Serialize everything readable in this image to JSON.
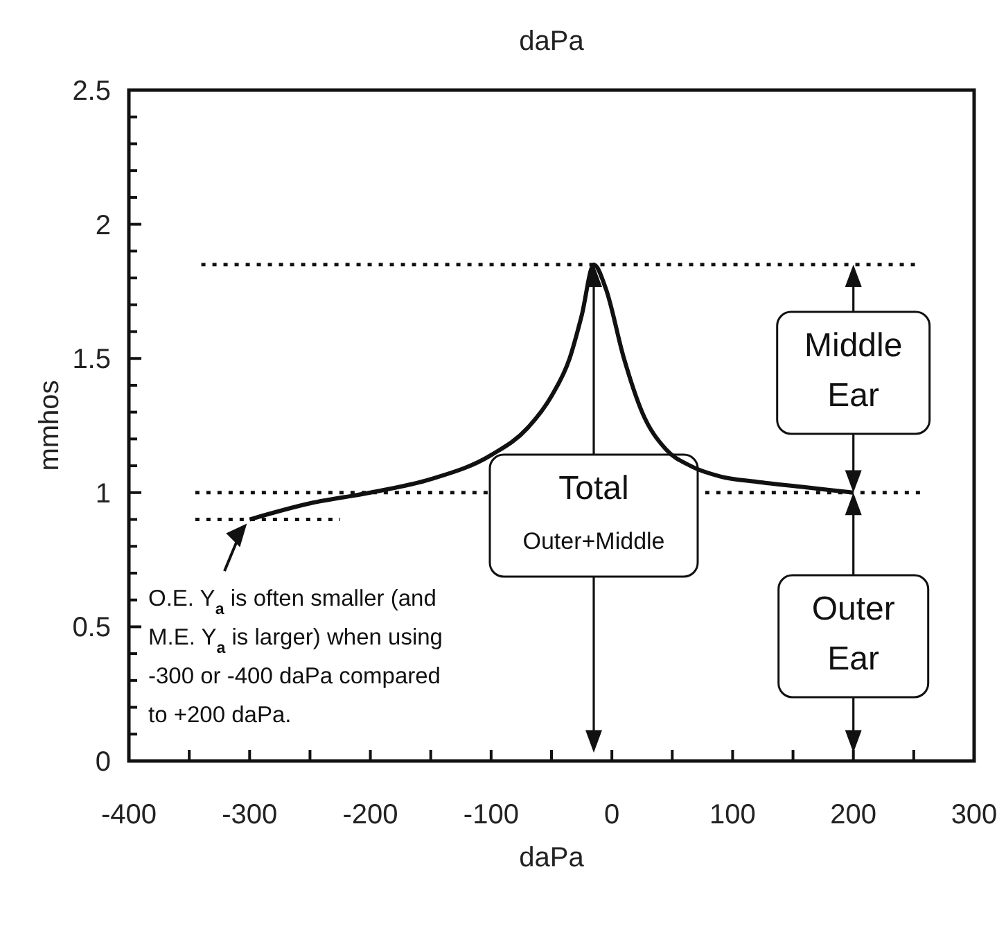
{
  "chart_data": {
    "type": "line",
    "title": "daPa",
    "xlabel": "daPa",
    "ylabel": "mmhos",
    "x": [
      -300,
      -250,
      -200,
      -150,
      -100,
      -70,
      -50,
      -35,
      -25,
      -15,
      -5,
      10,
      25,
      45,
      65,
      90,
      120,
      160,
      200
    ],
    "series": [
      {
        "color": "#111111",
        "values": [
          0.9,
          0.96,
          1.0,
          1.05,
          1.14,
          1.24,
          1.36,
          1.5,
          1.66,
          1.85,
          1.76,
          1.5,
          1.3,
          1.16,
          1.1,
          1.06,
          1.04,
          1.02,
          1.0
        ]
      }
    ],
    "xlim": [
      -400,
      300
    ],
    "ylim": [
      0,
      2.5
    ],
    "xticks": [
      -400,
      {
        "value": -350,
        "label": null
      },
      -300,
      {
        "value": -250,
        "label": null
      },
      -200,
      {
        "value": -150,
        "label": null
      },
      -100,
      {
        "value": -50,
        "label": null
      },
      0,
      {
        "value": 50,
        "label": null
      },
      100,
      {
        "value": 150,
        "label": null
      },
      200,
      {
        "value": 250,
        "label": null
      },
      300
    ],
    "yticks": [
      0,
      {
        "value": 0.1,
        "label": null
      },
      {
        "value": 0.2,
        "label": null
      },
      {
        "value": 0.3,
        "label": null
      },
      {
        "value": 0.4,
        "label": null
      },
      0.5,
      {
        "value": 0.6,
        "label": null
      },
      {
        "value": 0.7,
        "label": null
      },
      {
        "value": 0.8,
        "label": null
      },
      {
        "value": 0.9,
        "label": null
      },
      1,
      {
        "value": 1.1,
        "label": null
      },
      {
        "value": 1.2,
        "label": null
      },
      {
        "value": 1.3,
        "label": null
      },
      {
        "value": 1.4,
        "label": null
      },
      1.5,
      {
        "value": 1.6,
        "label": null
      },
      {
        "value": 1.7,
        "label": null
      },
      {
        "value": 1.8,
        "label": null
      },
      {
        "value": 1.9,
        "label": null
      },
      2,
      {
        "value": 2.1,
        "label": null
      },
      {
        "value": 2.2,
        "label": null
      },
      {
        "value": 2.3,
        "label": null
      },
      {
        "value": 2.4,
        "label": null
      },
      2.5
    ],
    "ref_lines": [
      {
        "axis": "y",
        "value": 1.85,
        "line_style": "dotted"
      },
      {
        "axis": "y",
        "value": 1.0,
        "line_style": "dotted"
      },
      {
        "axis": "y",
        "value": 0.9,
        "line_style": "dotted"
      }
    ],
    "annotations": [
      "Total\nOuter+Middle",
      "Middle\nEar",
      "Outer\nEar",
      "O.E. Y$_{a}$ is often smaller (and\nM.E. Y$_{a}$ is larger) when using\n-300 or -400 daPa compared\nto +200 daPa."
    ],
    "marker": "none",
    "line_style": "solid"
  }
}
